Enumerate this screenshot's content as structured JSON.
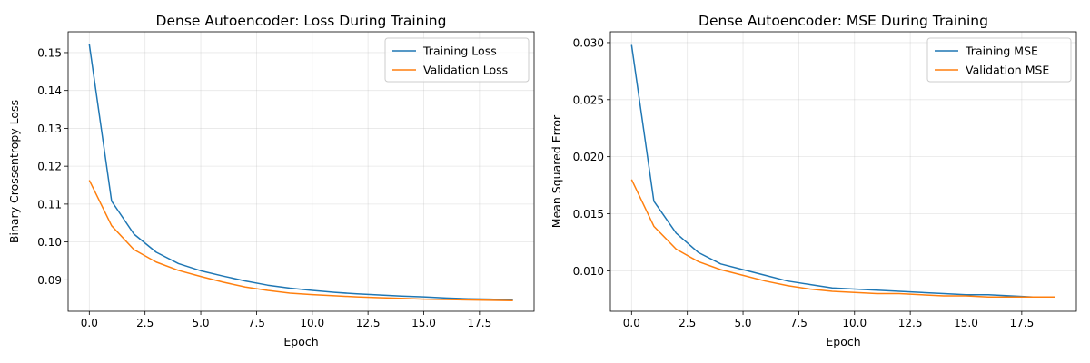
{
  "chart_data": [
    {
      "type": "line",
      "title": "Dense Autoencoder: Loss During Training",
      "xlabel": "Epoch",
      "ylabel": "Binary Crossentropy Loss",
      "xlim": [
        -0.95,
        19.95
      ],
      "ylim": [
        0.0817,
        0.1555
      ],
      "xticks": [
        0.0,
        2.5,
        5.0,
        7.5,
        10.0,
        12.5,
        15.0,
        17.5
      ],
      "xtick_labels": [
        "0.0",
        "2.5",
        "5.0",
        "7.5",
        "10.0",
        "12.5",
        "15.0",
        "17.5"
      ],
      "yticks": [
        0.09,
        0.1,
        0.11,
        0.12,
        0.13,
        0.14,
        0.15
      ],
      "ytick_labels": [
        "0.09",
        "0.10",
        "0.11",
        "0.12",
        "0.13",
        "0.14",
        "0.15"
      ],
      "grid": true,
      "legend_position": "top-right",
      "x": [
        0,
        1,
        2,
        3,
        4,
        5,
        6,
        7,
        8,
        9,
        10,
        11,
        12,
        13,
        14,
        15,
        16,
        17,
        18,
        19
      ],
      "series": [
        {
          "name": "Training Loss",
          "color": "#1f77b4",
          "values": [
            0.1522,
            0.1108,
            0.1021,
            0.0973,
            0.0943,
            0.0924,
            0.091,
            0.0897,
            0.0886,
            0.0878,
            0.0872,
            0.0867,
            0.0863,
            0.086,
            0.0857,
            0.0855,
            0.0852,
            0.085,
            0.0849,
            0.0847
          ]
        },
        {
          "name": "Validation Loss",
          "color": "#ff7f0e",
          "values": [
            0.1163,
            0.1043,
            0.098,
            0.0947,
            0.0925,
            0.0909,
            0.0894,
            0.0881,
            0.0872,
            0.0865,
            0.0861,
            0.0858,
            0.0855,
            0.0853,
            0.0851,
            0.0849,
            0.0848,
            0.0847,
            0.0846,
            0.0845
          ]
        }
      ]
    },
    {
      "type": "line",
      "title": "Dense Autoencoder: MSE During Training",
      "xlabel": "Epoch",
      "ylabel": "Mean Squared Error",
      "xlim": [
        -0.95,
        19.95
      ],
      "ylim": [
        0.00645,
        0.03095
      ],
      "xticks": [
        0.0,
        2.5,
        5.0,
        7.5,
        10.0,
        12.5,
        15.0,
        17.5
      ],
      "xtick_labels": [
        "0.0",
        "2.5",
        "5.0",
        "7.5",
        "10.0",
        "12.5",
        "15.0",
        "17.5"
      ],
      "yticks": [
        0.01,
        0.015,
        0.02,
        0.025,
        0.03
      ],
      "ytick_labels": [
        "0.010",
        "0.015",
        "0.020",
        "0.025",
        "0.030"
      ],
      "grid": true,
      "legend_position": "top-right",
      "x": [
        0,
        1,
        2,
        3,
        4,
        5,
        6,
        7,
        8,
        9,
        10,
        11,
        12,
        13,
        14,
        15,
        16,
        17,
        18,
        19
      ],
      "series": [
        {
          "name": "Training MSE",
          "color": "#1f77b4",
          "values": [
            0.0298,
            0.0161,
            0.0133,
            0.0116,
            0.0106,
            0.0101,
            0.0096,
            0.0091,
            0.0088,
            0.0085,
            0.0084,
            0.0083,
            0.0082,
            0.0081,
            0.008,
            0.0079,
            0.0079,
            0.0078,
            0.0077,
            0.0077
          ]
        },
        {
          "name": "Validation MSE",
          "color": "#ff7f0e",
          "values": [
            0.018,
            0.0139,
            0.0119,
            0.0108,
            0.0101,
            0.0096,
            0.0091,
            0.0087,
            0.0084,
            0.0082,
            0.0081,
            0.008,
            0.008,
            0.0079,
            0.0078,
            0.0078,
            0.0077,
            0.0077,
            0.0077,
            0.0077
          ]
        }
      ]
    }
  ]
}
